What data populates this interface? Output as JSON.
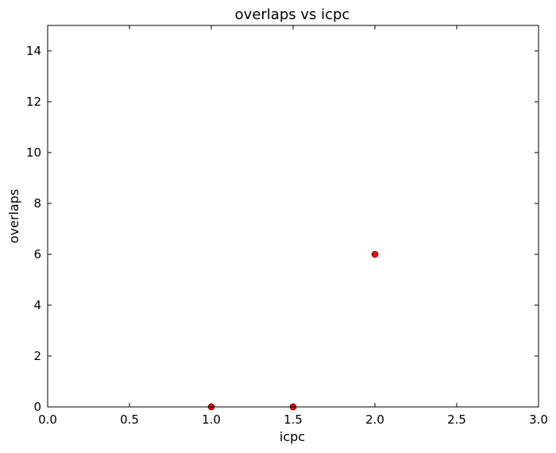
{
  "chart_data": {
    "type": "scatter",
    "title": "overlaps vs icpc",
    "xlabel": "icpc",
    "ylabel": "overlaps",
    "xlim": [
      0.0,
      3.0
    ],
    "ylim": [
      0,
      15
    ],
    "xticks": [
      "0.0",
      "0.5",
      "1.0",
      "1.5",
      "2.0",
      "2.5",
      "3.0"
    ],
    "yticks": [
      "0",
      "2",
      "4",
      "6",
      "8",
      "10",
      "12",
      "14"
    ],
    "grid": false,
    "series": [
      {
        "points": [
          [
            1.0,
            0
          ],
          [
            1.5,
            0
          ],
          [
            2.0,
            6
          ]
        ],
        "color": "#ff0000"
      }
    ]
  }
}
